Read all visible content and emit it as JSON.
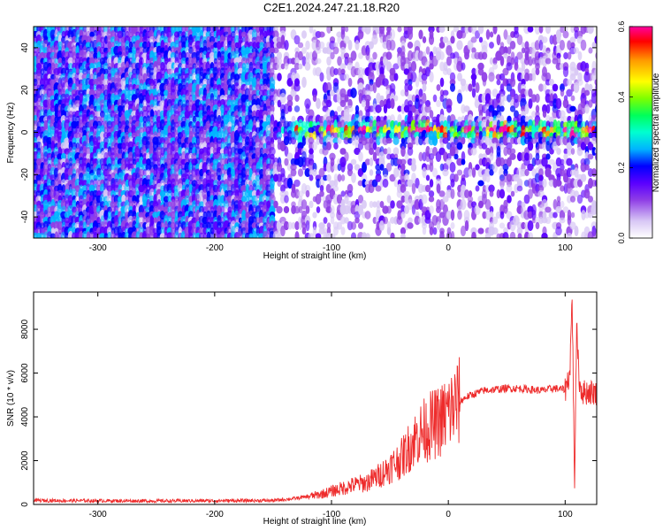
{
  "figure": {
    "title": "C2E1.2024.247.21.18.R20"
  },
  "chart_data": [
    {
      "type": "heatmap",
      "title": "C2E1.2024.247.21.18.R20",
      "xlabel": "Height of straight line (km)",
      "ylabel": "Frequency (Hz)",
      "xlim": [
        -355,
        127
      ],
      "ylim": [
        -50,
        50
      ],
      "xticks": [
        -300,
        -200,
        -100,
        0,
        100
      ],
      "yticks": [
        -40,
        -20,
        0,
        20,
        40
      ],
      "colorbar": {
        "label": "Normalized spectral amplitude",
        "range": [
          0.0,
          0.6
        ],
        "ticks": [
          "0.0",
          "0.2",
          "0.4",
          "0.6"
        ],
        "colors": [
          "#ffffff",
          "#d8c8f5",
          "#8f3ee6",
          "#5a00ff",
          "#0000ff",
          "#00b4ff",
          "#00ffd0",
          "#00ff5a",
          "#7dff00",
          "#ffff00",
          "#ff9a00",
          "#ff0000",
          "#ff00a0"
        ]
      },
      "features": [
        {
          "description_x_range_km": [
            -355,
            -150
          ],
          "fill": "dense purple noise across all frequencies"
        },
        {
          "description_x_range_km": [
            -150,
            127
          ],
          "fill": "sparse purple noise, bright band near 0 to 5 Hz"
        }
      ]
    },
    {
      "type": "line",
      "xlabel": "Height of straight line (km)",
      "ylabel": "SNR (10 * v/v)",
      "xlim": [
        -355,
        127
      ],
      "ylim": [
        0,
        9700
      ],
      "xticks": [
        -300,
        -200,
        -100,
        0,
        100
      ],
      "yticks": [
        0,
        2000,
        4000,
        6000,
        8000
      ],
      "color": "#ee2b2b",
      "x": [
        -355,
        -300,
        -250,
        -200,
        -150,
        -130,
        -110,
        -100,
        -90,
        -80,
        -70,
        -60,
        -50,
        -40,
        -35,
        -30,
        -25,
        -20,
        -15,
        -10,
        -5,
        0,
        5,
        10,
        15,
        20,
        25,
        30,
        40,
        50,
        60,
        70,
        80,
        90,
        100,
        104,
        106,
        108,
        110,
        112,
        115,
        120,
        127
      ],
      "values": [
        180,
        170,
        160,
        170,
        180,
        280,
        450,
        600,
        750,
        900,
        1000,
        1300,
        1700,
        2100,
        2500,
        2900,
        3200,
        3400,
        3600,
        3700,
        3900,
        4200,
        4500,
        4700,
        4900,
        5000,
        5100,
        5200,
        5250,
        5300,
        5300,
        5250,
        5200,
        5300,
        5250,
        6000,
        9600,
        900,
        8400,
        5600,
        5100,
        5150,
        5100
      ]
    }
  ]
}
